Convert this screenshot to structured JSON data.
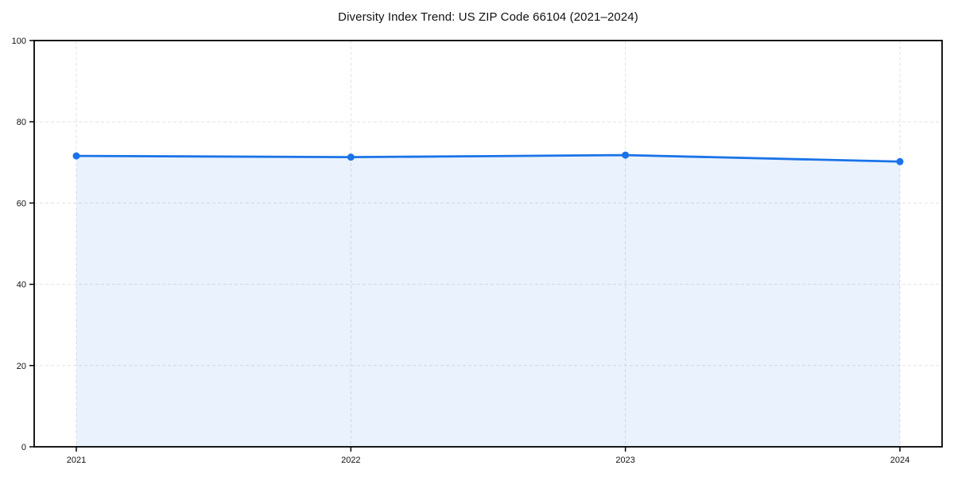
{
  "chart": {
    "title": "Diversity Index Trend: US ZIP Code 66104 (2021–2024)"
  },
  "chart_data": {
    "type": "area",
    "title": "Diversity Index Trend: US ZIP Code 66104 (2021–2024)",
    "categories": [
      "2021",
      "2022",
      "2023",
      "2024"
    ],
    "series": [
      {
        "name": "Diversity Index",
        "values": [
          71.6,
          71.3,
          71.8,
          70.2
        ]
      }
    ],
    "xlabel": "",
    "ylabel": "",
    "ylim": [
      0,
      100
    ],
    "yticks": [
      0,
      20,
      40,
      60,
      80,
      100
    ],
    "grid": true,
    "grid_style": "dashed",
    "legend_position": "none",
    "colors": {
      "line": "#1a73e8",
      "marker": "#1a73e8",
      "fill": "#1a73e8",
      "fill_opacity": "0.09",
      "grid": "#e2e2e2",
      "frame": "#000000",
      "tick_text": "#111111",
      "background": "#ffffff"
    }
  }
}
